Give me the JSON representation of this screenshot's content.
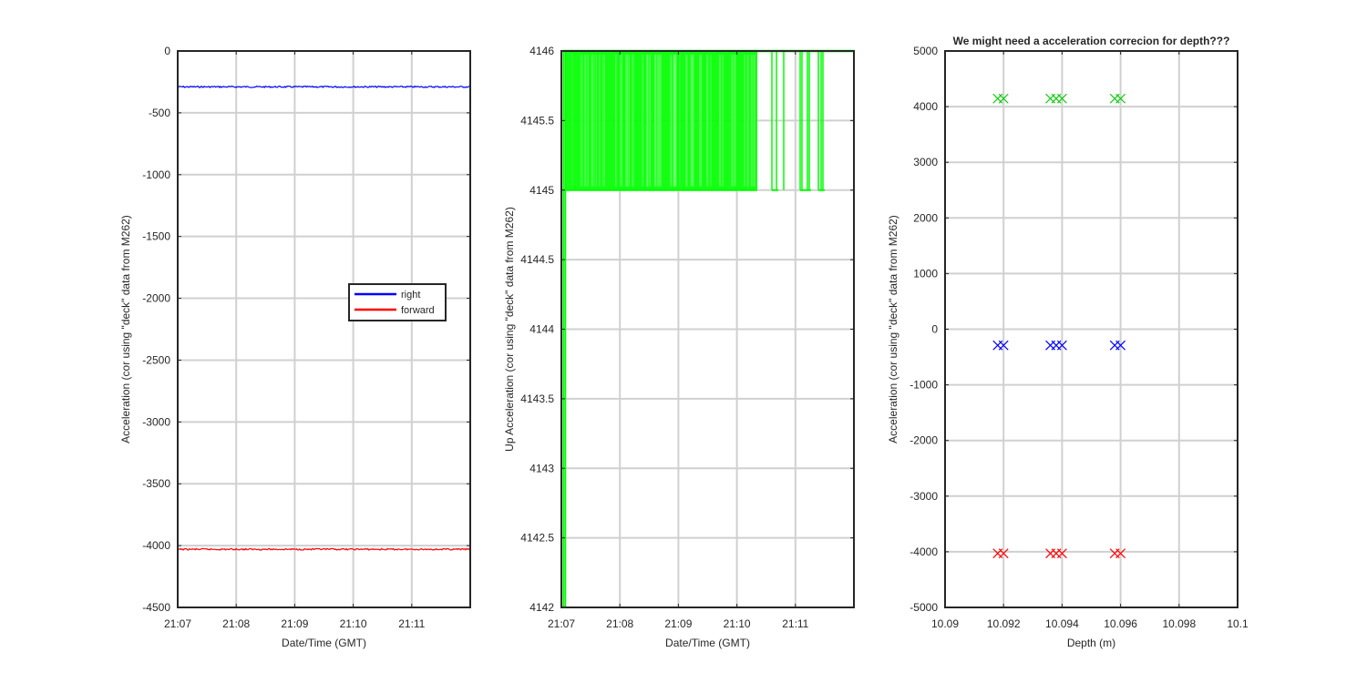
{
  "chart_data": [
    {
      "type": "line",
      "title": "",
      "xlabel": "Date/Time (GMT)",
      "ylabel": "Acceleration (cor using \"deck\" data from M262)",
      "xlim": [
        "21:07",
        "21:12"
      ],
      "ylim": [
        -4500,
        0
      ],
      "x_ticks": [
        "21:07",
        "21:08",
        "21:09",
        "21:10",
        "21:11"
      ],
      "y_ticks": [
        0,
        -500,
        -1000,
        -1500,
        -2000,
        -2500,
        -3000,
        -3500,
        -4000,
        -4500
      ],
      "grid": true,
      "legend": "center-right",
      "series": [
        {
          "name": "right",
          "color": "#0000ff",
          "x": [
            "21:07",
            "21:12"
          ],
          "values": [
            -290,
            -290
          ]
        },
        {
          "name": "forward",
          "color": "#ff0000",
          "x": [
            "21:07",
            "21:12"
          ],
          "values": [
            -4030,
            -4030
          ]
        }
      ]
    },
    {
      "type": "line",
      "title": "",
      "xlabel": "Date/Time (GMT)",
      "ylabel": "Up Acceleration (cor using \"deck\" data from M262)",
      "xlim": [
        "21:07",
        "21:12"
      ],
      "ylim": [
        4142,
        4146
      ],
      "x_ticks": [
        "21:07",
        "21:08",
        "21:09",
        "21:10",
        "21:11"
      ],
      "y_ticks": [
        4146,
        4145.5,
        4145,
        4144.5,
        4144,
        4143.5,
        4143,
        4142.5,
        4142
      ],
      "grid": true,
      "series": [
        {
          "color": "#00ff00",
          "description": "signal toggles between 4145 and 4146; initial drop to 4142 at 21:07",
          "values": [
            4142,
            4145,
            4146
          ]
        }
      ]
    },
    {
      "type": "scatter",
      "title": "We might need a acceleration correcion for depth???",
      "xlabel": "Depth (m)",
      "ylabel": "Acceleration (cor using \"deck\" data from M262)",
      "xlim": [
        10.09,
        10.1
      ],
      "ylim": [
        -5000,
        5000
      ],
      "x_ticks": [
        "10.09",
        "10.092",
        "10.094",
        "10.096",
        "10.098",
        "10.1"
      ],
      "y_ticks": [
        5000,
        4000,
        3000,
        2000,
        1000,
        0,
        -1000,
        -2000,
        -3000,
        -4000,
        -5000
      ],
      "grid": true,
      "marker": "x",
      "series": [
        {
          "color": "#00cc00",
          "x": [
            10.0918,
            10.092,
            10.0936,
            10.0938,
            10.094,
            10.0958,
            10.096
          ],
          "values": [
            4145,
            4145,
            4145,
            4145,
            4145,
            4145,
            4145
          ]
        },
        {
          "color": "#0000ff",
          "x": [
            10.0918,
            10.092,
            10.0936,
            10.0938,
            10.094,
            10.0958,
            10.096
          ],
          "values": [
            -290,
            -290,
            -290,
            -290,
            -290,
            -290,
            -290
          ]
        },
        {
          "color": "#ff0000",
          "x": [
            10.0918,
            10.092,
            10.0936,
            10.0938,
            10.094,
            10.0958,
            10.096
          ],
          "values": [
            -4030,
            -4030,
            -4030,
            -4030,
            -4030,
            -4030,
            -4030
          ]
        }
      ]
    }
  ]
}
